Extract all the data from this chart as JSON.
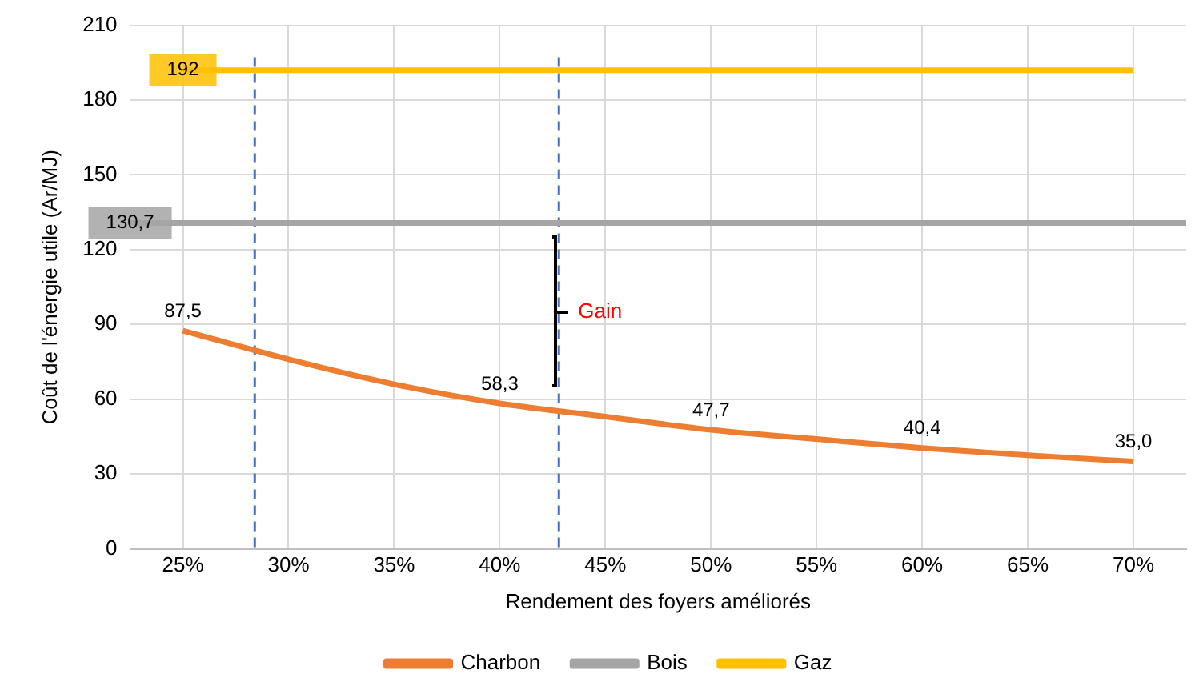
{
  "chart_data": {
    "type": "line",
    "xlabel": "Rendement des foyers améliorés",
    "ylabel": "Coût de l'énergie utile (Ar/MJ)",
    "xlim": [
      22.5,
      72.5
    ],
    "xticks": [
      {
        "value": 25,
        "label": "25%"
      },
      {
        "value": 30,
        "label": "30%"
      },
      {
        "value": 35,
        "label": "35%"
      },
      {
        "value": 40,
        "label": "40%"
      },
      {
        "value": 45,
        "label": "45%"
      },
      {
        "value": 50,
        "label": "50%"
      },
      {
        "value": 55,
        "label": "55%"
      },
      {
        "value": 60,
        "label": "60%"
      },
      {
        "value": 65,
        "label": "65%"
      },
      {
        "value": 70,
        "label": "70%"
      }
    ],
    "ylim": [
      0,
      210
    ],
    "yticks": [
      0,
      30,
      60,
      90,
      120,
      150,
      180,
      210
    ],
    "grid": true,
    "legend": "bottom",
    "series": [
      {
        "name": "Charbon",
        "color": "#ed7d31",
        "x": [
          25,
          30,
          35,
          40,
          45,
          50,
          55,
          60,
          65,
          70
        ],
        "values": [
          87.5,
          76,
          66,
          58.3,
          53,
          47.7,
          44,
          40.4,
          37.5,
          35.0
        ],
        "value_labels": [
          "87,5",
          null,
          null,
          "58,3",
          null,
          "47,7",
          null,
          "40,4",
          null,
          "35,0"
        ]
      },
      {
        "name": "Bois",
        "color": "#a5a5a5",
        "x": [
          22.5,
          72.5
        ],
        "values": [
          130.7,
          130.7
        ],
        "value_labels": [
          "130,7",
          null
        ]
      },
      {
        "name": "Gaz",
        "color": "#ffc000",
        "x": [
          25,
          70
        ],
        "values": [
          192,
          192
        ],
        "value_labels": [
          "192",
          null
        ]
      }
    ],
    "ref_lines": [
      {
        "axis": "x",
        "value": 28.4,
        "color": "#4472c4",
        "line_style": "dashed"
      },
      {
        "axis": "x",
        "value": 42.8,
        "color": "#4472c4",
        "line_style": "dashed"
      }
    ],
    "annotations": [
      {
        "text": "Gain",
        "x": 42.8,
        "y": 95
      }
    ]
  }
}
